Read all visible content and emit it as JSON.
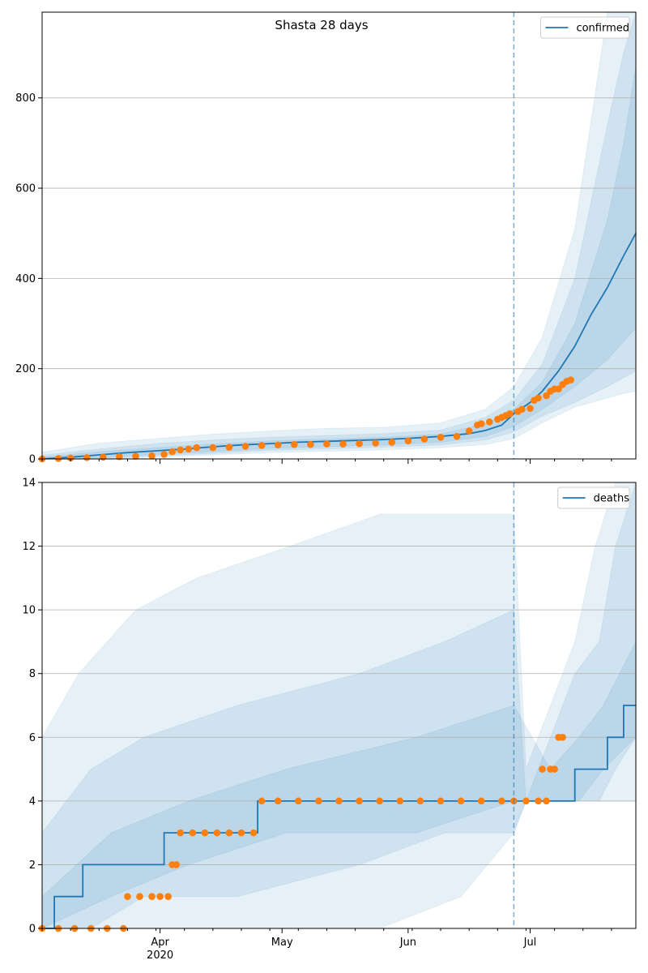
{
  "chart_data": [
    {
      "type": "line",
      "title": "Shasta 28 days",
      "xlabel": "",
      "ylabel": "",
      "x_start": "2020-03-03",
      "x_end": "2020-07-27",
      "ylim": [
        0,
        990
      ],
      "yticks": [
        0,
        200,
        400,
        600,
        800
      ],
      "grid": "y",
      "legend": "top-right",
      "cutoff_date": "2020-06-27",
      "series": [
        {
          "name": "confirmed",
          "kind": "line",
          "color": "#1f77b4",
          "x": [
            "2020-03-03",
            "2020-03-10",
            "2020-03-17",
            "2020-03-24",
            "2020-03-31",
            "2020-04-07",
            "2020-04-14",
            "2020-04-21",
            "2020-04-28",
            "2020-05-05",
            "2020-05-12",
            "2020-05-19",
            "2020-05-26",
            "2020-06-02",
            "2020-06-09",
            "2020-06-16",
            "2020-06-20",
            "2020-06-24",
            "2020-06-27",
            "2020-07-01",
            "2020-07-04",
            "2020-07-08",
            "2020-07-12",
            "2020-07-16",
            "2020-07-20",
            "2020-07-24",
            "2020-07-27"
          ],
          "y": [
            0,
            4,
            9,
            14,
            18,
            22,
            27,
            31,
            34,
            37,
            39,
            41,
            43,
            46,
            50,
            56,
            63,
            75,
            100,
            125,
            150,
            195,
            250,
            320,
            380,
            450,
            500
          ]
        },
        {
          "name": "observed confirmed",
          "kind": "scatter",
          "color": "#ff7f0e",
          "x": [
            "2020-03-03",
            "2020-03-07",
            "2020-03-10",
            "2020-03-14",
            "2020-03-18",
            "2020-03-22",
            "2020-03-26",
            "2020-03-30",
            "2020-04-02",
            "2020-04-04",
            "2020-04-06",
            "2020-04-08",
            "2020-04-10",
            "2020-04-14",
            "2020-04-18",
            "2020-04-22",
            "2020-04-26",
            "2020-04-30",
            "2020-05-04",
            "2020-05-08",
            "2020-05-12",
            "2020-05-16",
            "2020-05-20",
            "2020-05-24",
            "2020-05-28",
            "2020-06-01",
            "2020-06-05",
            "2020-06-09",
            "2020-06-13",
            "2020-06-16",
            "2020-06-18",
            "2020-06-19",
            "2020-06-21",
            "2020-06-23",
            "2020-06-24",
            "2020-06-25",
            "2020-06-26",
            "2020-06-28",
            "2020-06-29",
            "2020-07-01",
            "2020-07-02",
            "2020-07-03",
            "2020-07-05",
            "2020-07-06",
            "2020-07-07",
            "2020-07-08",
            "2020-07-09",
            "2020-07-10",
            "2020-07-11"
          ],
          "y": [
            0,
            1,
            2,
            3,
            4,
            5,
            6,
            7,
            10,
            16,
            20,
            22,
            25,
            25,
            26,
            28,
            30,
            31,
            32,
            32,
            33,
            33,
            34,
            35,
            37,
            40,
            44,
            48,
            50,
            62,
            75,
            78,
            82,
            88,
            92,
            96,
            100,
            105,
            110,
            112,
            130,
            135,
            140,
            150,
            155,
            155,
            165,
            172,
            175
          ]
        }
      ],
      "bands": [
        {
          "x": [
            "2020-03-03",
            "2020-03-17",
            "2020-03-31",
            "2020-04-14",
            "2020-04-28",
            "2020-05-12",
            "2020-05-26",
            "2020-06-09",
            "2020-06-20",
            "2020-06-27",
            "2020-07-04",
            "2020-07-12",
            "2020-07-20",
            "2020-07-24",
            "2020-07-27"
          ],
          "lo": [
            0,
            0,
            4,
            9,
            14,
            17,
            20,
            25,
            32,
            45,
            80,
            115,
            135,
            145,
            150
          ],
          "hi": [
            15,
            35,
            45,
            55,
            62,
            68,
            70,
            80,
            110,
            160,
            270,
            510,
            990,
            990,
            990
          ]
        },
        {
          "x": [
            "2020-03-03",
            "2020-03-17",
            "2020-03-31",
            "2020-04-14",
            "2020-04-28",
            "2020-05-12",
            "2020-05-26",
            "2020-06-09",
            "2020-06-20",
            "2020-06-27",
            "2020-07-04",
            "2020-07-12",
            "2020-07-20",
            "2020-07-24",
            "2020-07-27"
          ],
          "lo": [
            0,
            1,
            7,
            12,
            19,
            22,
            26,
            31,
            42,
            60,
            95,
            125,
            160,
            180,
            195
          ],
          "hi": [
            8,
            22,
            34,
            42,
            48,
            52,
            56,
            64,
            92,
            130,
            210,
            400,
            740,
            900,
            990
          ]
        },
        {
          "x": [
            "2020-03-03",
            "2020-03-17",
            "2020-03-31",
            "2020-04-14",
            "2020-04-28",
            "2020-05-12",
            "2020-05-26",
            "2020-06-09",
            "2020-06-20",
            "2020-06-27",
            "2020-07-04",
            "2020-07-12",
            "2020-07-20",
            "2020-07-24",
            "2020-07-27"
          ],
          "lo": [
            0,
            3,
            10,
            16,
            23,
            27,
            31,
            37,
            50,
            72,
            110,
            160,
            220,
            260,
            290
          ],
          "hi": [
            4,
            16,
            25,
            33,
            40,
            44,
            48,
            55,
            78,
            110,
            170,
            300,
            530,
            700,
            870
          ]
        }
      ],
      "xticks": [
        {
          "date": "2020-04-01",
          "label": "Apr",
          "sub": "2020"
        },
        {
          "date": "2020-05-01",
          "label": "May",
          "sub": ""
        },
        {
          "date": "2020-06-01",
          "label": "Jun",
          "sub": ""
        },
        {
          "date": "2020-07-01",
          "label": "Jul",
          "sub": ""
        }
      ]
    },
    {
      "type": "line",
      "title": "",
      "xlabel": "",
      "ylabel": "",
      "x_start": "2020-03-03",
      "x_end": "2020-07-27",
      "ylim": [
        0,
        14
      ],
      "yticks": [
        0,
        2,
        4,
        6,
        8,
        10,
        12,
        14
      ],
      "grid": "y",
      "legend": "top-right",
      "cutoff_date": "2020-06-27",
      "series": [
        {
          "name": "deaths",
          "kind": "step",
          "color": "#1f77b4",
          "x": [
            "2020-03-03",
            "2020-03-06",
            "2020-03-13",
            "2020-04-02",
            "2020-04-25",
            "2020-06-20",
            "2020-06-29",
            "2020-07-04",
            "2020-07-12",
            "2020-07-20",
            "2020-07-24",
            "2020-07-27"
          ],
          "y": [
            0,
            1,
            2,
            3,
            4,
            4,
            4,
            4,
            5,
            6,
            7,
            7
          ]
        },
        {
          "name": "observed deaths",
          "kind": "scatter",
          "color": "#ff7f0e",
          "x": [
            "2020-03-03",
            "2020-03-07",
            "2020-03-11",
            "2020-03-15",
            "2020-03-19",
            "2020-03-23",
            "2020-03-24",
            "2020-03-27",
            "2020-03-30",
            "2020-04-01",
            "2020-04-03",
            "2020-04-04",
            "2020-04-05",
            "2020-04-06",
            "2020-04-09",
            "2020-04-12",
            "2020-04-15",
            "2020-04-18",
            "2020-04-21",
            "2020-04-24",
            "2020-04-26",
            "2020-04-30",
            "2020-05-05",
            "2020-05-10",
            "2020-05-15",
            "2020-05-20",
            "2020-05-25",
            "2020-05-30",
            "2020-06-04",
            "2020-06-09",
            "2020-06-14",
            "2020-06-19",
            "2020-06-24",
            "2020-06-27",
            "2020-06-30",
            "2020-07-03",
            "2020-07-04",
            "2020-07-05",
            "2020-07-06",
            "2020-07-07",
            "2020-07-08",
            "2020-07-09"
          ],
          "y": [
            0,
            0,
            0,
            0,
            0,
            0,
            1,
            1,
            1,
            1,
            1,
            2,
            2,
            3,
            3,
            3,
            3,
            3,
            3,
            3,
            4,
            4,
            4,
            4,
            4,
            4,
            4,
            4,
            4,
            4,
            4,
            4,
            4,
            4,
            4,
            4,
            5,
            4,
            5,
            5,
            6,
            6
          ]
        }
      ],
      "bands": [
        {
          "x": [
            "2020-03-03",
            "2020-03-12",
            "2020-03-26",
            "2020-04-10",
            "2020-05-03",
            "2020-05-25",
            "2020-06-14",
            "2020-06-27",
            "2020-06-30",
            "2020-07-06",
            "2020-07-12",
            "2020-07-17",
            "2020-07-22",
            "2020-07-27"
          ],
          "lo": [
            0,
            0,
            0,
            0,
            0,
            0,
            1,
            3,
            4,
            4,
            4,
            4,
            4,
            4
          ],
          "hi": [
            6,
            8,
            10,
            11,
            12,
            13,
            13,
            13,
            5,
            7,
            9,
            12,
            14,
            14
          ]
        },
        {
          "x": [
            "2020-03-03",
            "2020-03-15",
            "2020-03-28",
            "2020-04-20",
            "2020-05-20",
            "2020-06-10",
            "2020-06-27",
            "2020-06-30",
            "2020-07-06",
            "2020-07-12",
            "2020-07-18",
            "2020-07-22",
            "2020-07-27"
          ],
          "lo": [
            0,
            0,
            1,
            1,
            2,
            3,
            3,
            4,
            4,
            4,
            4,
            5,
            6
          ],
          "hi": [
            3,
            5,
            6,
            7,
            8,
            9,
            10,
            4,
            6,
            8,
            9,
            12,
            14
          ]
        },
        {
          "x": [
            "2020-03-03",
            "2020-03-20",
            "2020-04-08",
            "2020-05-02",
            "2020-06-03",
            "2020-06-27",
            "2020-07-06",
            "2020-07-13",
            "2020-07-19",
            "2020-07-27"
          ],
          "lo": [
            0,
            1,
            2,
            3,
            3,
            4,
            4,
            4,
            5,
            6
          ],
          "hi": [
            1,
            3,
            4,
            5,
            6,
            7,
            5,
            6,
            7,
            9
          ]
        }
      ],
      "xticks": [
        {
          "date": "2020-04-01",
          "label": "Apr",
          "sub": "2020"
        },
        {
          "date": "2020-05-01",
          "label": "May",
          "sub": ""
        },
        {
          "date": "2020-06-01",
          "label": "Jun",
          "sub": ""
        },
        {
          "date": "2020-07-01",
          "label": "Jul",
          "sub": ""
        }
      ]
    }
  ]
}
